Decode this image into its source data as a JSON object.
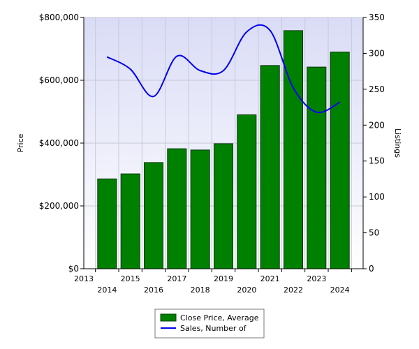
{
  "chart_data": {
    "type": "bar",
    "categories": [
      "2014",
      "2015",
      "2016",
      "2017",
      "2018",
      "2019",
      "2020",
      "2021",
      "2022",
      "2023",
      "2024"
    ],
    "x_tick_labels": [
      "2013",
      "2014",
      "2015",
      "2016",
      "2017",
      "2018",
      "2019",
      "2020",
      "2021",
      "2022",
      "2023",
      "2024"
    ],
    "series": [
      {
        "name": "Close Price, Average",
        "type": "bar",
        "axis": "left",
        "color": "#008000",
        "values": [
          286000,
          302000,
          338000,
          382000,
          378000,
          398000,
          490000,
          647000,
          758000,
          642000,
          690000
        ]
      },
      {
        "name": "Sales, Number of",
        "type": "line",
        "axis": "right",
        "color": "#0000ee",
        "values": [
          295,
          278,
          240,
          296,
          276,
          276,
          330,
          332,
          252,
          218,
          232
        ]
      }
    ],
    "ylabel": "Price",
    "y2label": "Listings",
    "ylim": [
      0,
      800000
    ],
    "y2lim": [
      0,
      350
    ],
    "y_ticks": [
      "$0",
      "$200,000",
      "$400,000",
      "$600,000",
      "$800,000"
    ],
    "y_tick_values": [
      0,
      200000,
      400000,
      600000,
      800000
    ],
    "y2_ticks": [
      "0",
      "50",
      "100",
      "150",
      "200",
      "250",
      "300",
      "350"
    ],
    "y2_tick_values": [
      0,
      50,
      100,
      150,
      200,
      250,
      300,
      350
    ],
    "grid": true,
    "legend": "bottom-center"
  }
}
